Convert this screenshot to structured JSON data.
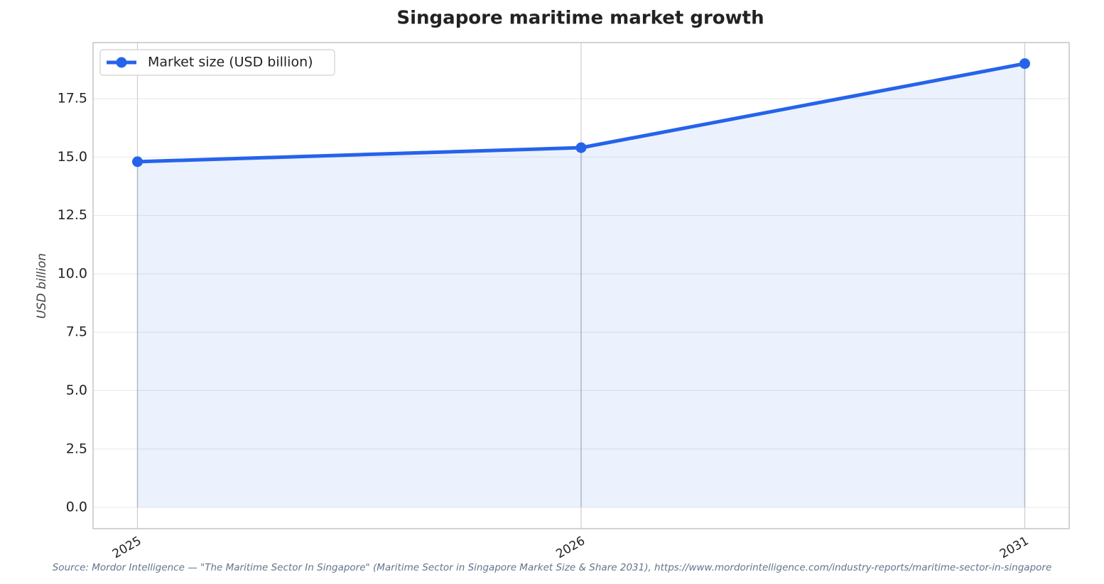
{
  "chart_data": {
    "type": "line",
    "title": "Singapore maritime market growth",
    "ylabel": "USD billion",
    "categories": [
      "2025",
      "2026",
      "2031"
    ],
    "series": [
      {
        "name": "Market size (USD billion)",
        "color": "#2563eb",
        "values": [
          14.8,
          15.4,
          19.0
        ]
      }
    ],
    "ylim": [
      -0.91,
      19.9
    ],
    "yticks": [
      {
        "value": 0,
        "label": "0.0"
      },
      2.5,
      {
        "value": 5,
        "label": "5.0"
      },
      7.5,
      {
        "value": 10,
        "label": "10.0"
      },
      12.5,
      {
        "value": 15,
        "label": "15.0"
      },
      17.5
    ],
    "grid": true,
    "fill_area": true,
    "legend": "upper left",
    "source": "Source: Mordor Intelligence — \"The Maritime Sector In Singapore\" (Maritime Sector in Singapore Market Size & Share 2031), https://www.mordorintelligence.com/industry-reports/maritime-sector-in-singapore"
  }
}
